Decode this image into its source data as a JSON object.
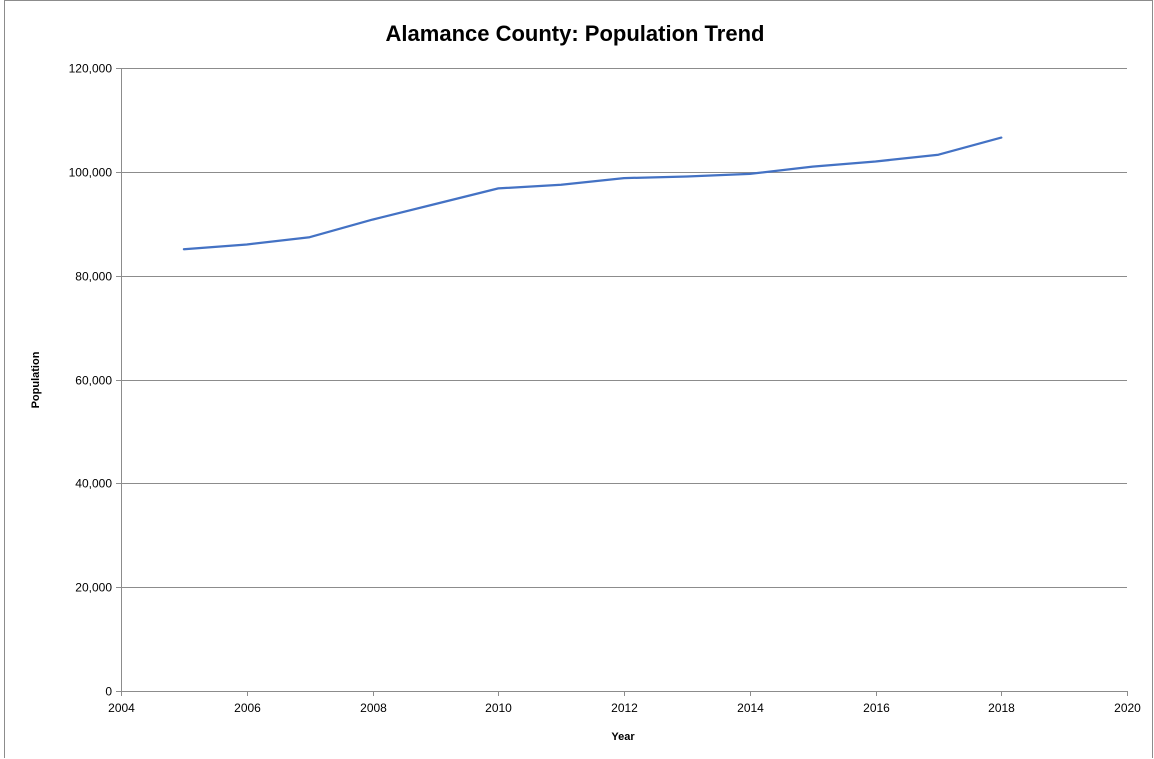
{
  "chart_data": {
    "type": "line",
    "title": "Alamance County: Population Trend",
    "xlabel": "Year",
    "ylabel": "Population",
    "xlim": [
      2004,
      2020
    ],
    "ylim": [
      0,
      120000
    ],
    "x_ticks": [
      "2004",
      "2006",
      "2008",
      "2010",
      "2012",
      "2014",
      "2016",
      "2018",
      "2020"
    ],
    "y_ticks": [
      "0",
      "20,000",
      "40,000",
      "60,000",
      "80,000",
      "100,000",
      "120,000"
    ],
    "grid": true,
    "series": [
      {
        "color": "#4472c4",
        "x": [
          2005,
          2006,
          2007,
          2008,
          2009,
          2010,
          2011,
          2012,
          2013,
          2014,
          2015,
          2016,
          2017,
          2018
        ],
        "values": [
          85100,
          86000,
          87400,
          90800,
          93800,
          96800,
          97500,
          98800,
          99100,
          99600,
          101000,
          102000,
          103300,
          106600
        ]
      }
    ]
  }
}
